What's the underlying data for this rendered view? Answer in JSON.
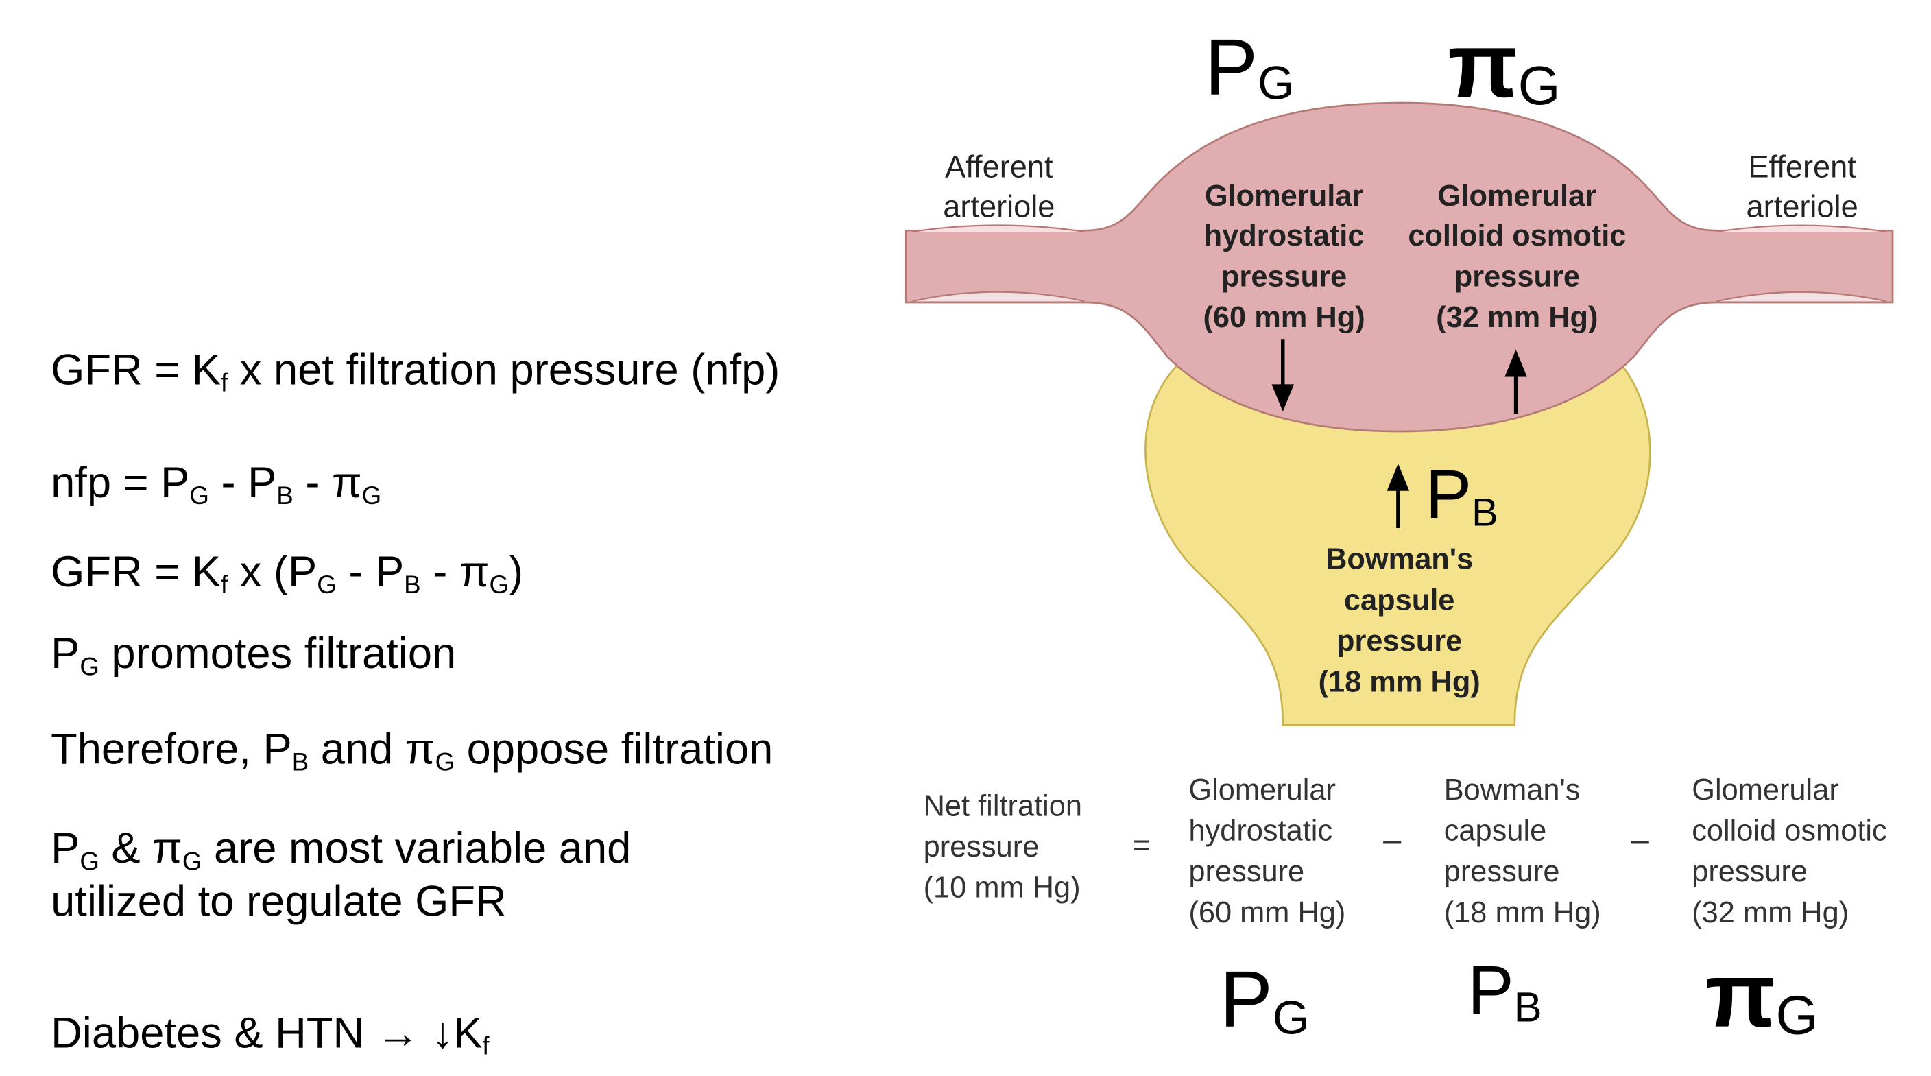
{
  "equations": {
    "gfr_def": {
      "lead": "GFR = K",
      "sub": "f",
      "tail": " x net filtration pressure (nfp)"
    },
    "nfp_def": {
      "a": "nfp = P",
      "a_sub": "G",
      "b": " - P",
      "b_sub": "B",
      "c": " - π",
      "c_sub": "G"
    },
    "gfr_expanded": {
      "a": "GFR = K",
      "a_sub": "f",
      "b": " x (P",
      "b_sub": "G",
      "c": " - P",
      "c_sub": "B",
      "d": " - π",
      "d_sub": "G",
      "e": ")"
    },
    "pg_promotes": {
      "a": "P",
      "a_sub": "G",
      "b": " promotes filtration"
    },
    "oppose": {
      "a": "Therefore, P",
      "a_sub": "B",
      "b": " and π",
      "b_sub": "G",
      "c": " oppose filtration"
    },
    "variable": {
      "a": "P",
      "a_sub": "G",
      "b": " & π",
      "b_sub": "G",
      "c": " are most variable and",
      "line2": "utilized to regulate GFR"
    },
    "diabetes": {
      "a": "Diabetes & HTN → ↓K",
      "a_sub": "f"
    }
  },
  "diagram": {
    "afferent": [
      "Afferent",
      "arteriole"
    ],
    "efferent": [
      "Efferent",
      "arteriole"
    ],
    "glom_hydrostatic": [
      "Glomerular",
      "hydrostatic",
      "pressure",
      "(60 mm Hg)"
    ],
    "glom_colloid": [
      "Glomerular",
      "colloid osmotic",
      "pressure",
      "(32 mm Hg)"
    ],
    "bowman": [
      "Bowman's",
      "capsule",
      "pressure",
      "(18 mm Hg)"
    ],
    "symbols": {
      "pg_top": "P",
      "pg_top_sub": "G",
      "pig_top": "π",
      "pig_top_sub": "G",
      "pb_mid": "P",
      "pb_mid_sub": "B"
    }
  },
  "formula": {
    "nfp": [
      "Net filtration",
      "pressure",
      "(10 mm Hg)"
    ],
    "equals": "=",
    "minus1": "–",
    "minus2": "–",
    "term1": [
      "Glomerular",
      "hydrostatic",
      "pressure",
      "(60 mm Hg)"
    ],
    "term2": [
      "Bowman's",
      "capsule",
      "pressure",
      "(18 mm Hg)"
    ],
    "term3": [
      "Glomerular",
      "colloid osmotic",
      "pressure",
      "(32 mm Hg)"
    ],
    "sym1": "P",
    "sym1_sub": "G",
    "sym2": "P",
    "sym2_sub": "B",
    "sym3": "π",
    "sym3_sub": "G"
  },
  "colors": {
    "vessel_fill": "#e0aeb0",
    "vessel_stroke": "#b67a76",
    "lumen_fill": "#f6e1e2",
    "capsule_fill": "#f4e38c",
    "capsule_stroke": "#c7b44f",
    "label_text": "#222222"
  }
}
